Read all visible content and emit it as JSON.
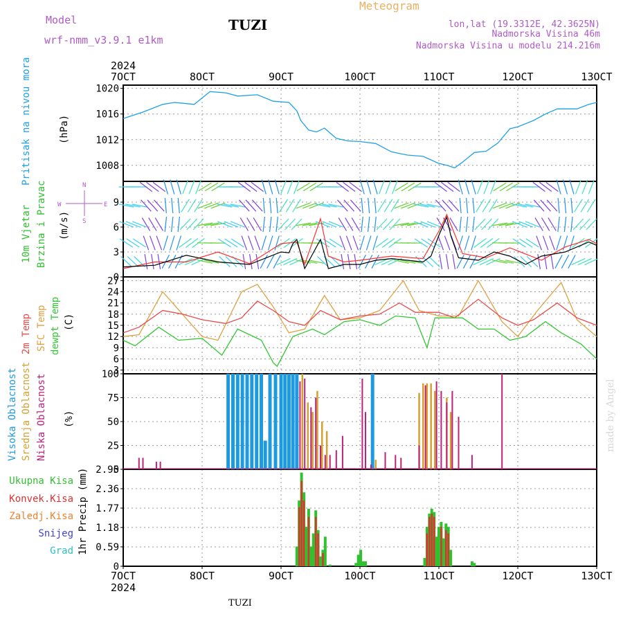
{
  "header": {
    "model_label": "Model",
    "model_name": "wrf-nmm_v3.9.1 e1km",
    "station": "TUZI",
    "chart_kind": "Meteogram",
    "lonlat": "lon,lat (19.3312E, 42.3625N)",
    "elevation": "Nadmorska Visina 46m",
    "model_elevation": "Nadmorska Visina u modelu 214.216m"
  },
  "footer": {
    "station": "TUZI",
    "credit": "made by Angel"
  },
  "colors": {
    "pressure": "#1ea0e6",
    "wind_speed": "#000000",
    "wind_gust": "#ff3030",
    "t2m": "#e84a4a",
    "sfc": "#e0a040",
    "dewpt": "#30c830",
    "cl_high": "#1e9be0",
    "cl_mid": "#d4a030",
    "cl_low": "#c0207a",
    "p_total": "#30c030",
    "p_conv": "#e03030",
    "p_frozen": "#f08030",
    "p_snow": "#4040e0",
    "p_hail": "#30c0c0"
  },
  "chart_data": [
    {
      "type": "line",
      "panel": "pressure",
      "labels": [
        "Pritisak na nivou mora",
        "(hPa)"
      ],
      "x_top_year": "2024",
      "x_ticks": [
        "7OCT",
        "8OCT",
        "9OCT",
        "10OCT",
        "11OCT",
        "12OCT",
        "13OCT"
      ],
      "x_range_days": [
        7,
        13
      ],
      "ylim": [
        1005.5,
        1020.5
      ],
      "yticks": [
        1008,
        1012,
        1016,
        1020
      ],
      "series": [
        {
          "x": [
            7.0,
            7.25,
            7.5,
            7.65,
            7.9,
            8.1,
            8.3,
            8.45,
            8.7,
            8.9,
            9.1,
            9.2,
            9.25,
            9.35,
            9.45,
            9.55,
            9.7,
            9.85,
            10.0,
            10.2,
            10.4,
            10.6,
            10.8,
            11.0,
            11.1,
            11.2,
            11.3,
            11.45,
            11.6,
            11.75,
            11.9,
            12.0,
            12.2,
            12.35,
            12.5,
            12.6,
            12.75,
            12.9,
            13.0
          ],
          "y": [
            1015.3,
            1016.3,
            1017.5,
            1017.8,
            1017.5,
            1019.5,
            1019.3,
            1018.8,
            1019.0,
            1018.0,
            1017.8,
            1016.5,
            1015.0,
            1013.5,
            1013.2,
            1013.8,
            1012.2,
            1011.8,
            1011.7,
            1011.4,
            1010.1,
            1009.6,
            1009.4,
            1008.3,
            1008.0,
            1007.6,
            1008.5,
            1010.0,
            1010.2,
            1011.5,
            1013.7,
            1014.0,
            1015.0,
            1016.0,
            1016.8,
            1016.8,
            1016.8,
            1017.5,
            1017.8
          ]
        }
      ]
    },
    {
      "type": "line",
      "panel": "wind",
      "labels": [
        "10m Vjetar",
        "Brzina i Pravac",
        "(m/s)"
      ],
      "ylim": [
        0,
        11.5
      ],
      "yticks": [
        0,
        3,
        6,
        9
      ],
      "compass": {
        "north": "N",
        "south": "S",
        "east": "E",
        "west": "W"
      },
      "series": [
        {
          "name": "speed",
          "x": [
            7.0,
            7.4,
            7.8,
            8.2,
            8.6,
            9.0,
            9.1,
            9.15,
            9.2,
            9.3,
            9.5,
            9.6,
            9.8,
            10.0,
            10.2,
            10.4,
            10.6,
            10.8,
            10.9,
            11.0,
            11.1,
            11.15,
            11.25,
            11.5,
            11.7,
            11.9,
            12.1,
            12.3,
            12.6,
            12.9,
            13.0
          ],
          "y": [
            1.2,
            1.4,
            2.6,
            1.8,
            1.5,
            3.0,
            2.9,
            4.0,
            4.5,
            1.0,
            4.5,
            1.0,
            1.5,
            1.5,
            2.0,
            2.2,
            2.0,
            1.8,
            2.5,
            5.0,
            7.2,
            5.0,
            2.3,
            2.0,
            3.0,
            2.5,
            1.5,
            2.5,
            3.0,
            4.2,
            3.8
          ]
        },
        {
          "name": "gust",
          "x": [
            7.0,
            7.4,
            7.8,
            8.2,
            8.6,
            9.0,
            9.2,
            9.3,
            9.5,
            9.6,
            9.8,
            10.0,
            10.4,
            10.8,
            11.0,
            11.1,
            11.3,
            11.6,
            11.9,
            12.3,
            12.6,
            12.9,
            13.0
          ],
          "y": [
            1.0,
            1.8,
            1.8,
            3.0,
            1.6,
            4.0,
            4.2,
            1.5,
            7.0,
            2.5,
            1.8,
            2.0,
            2.5,
            2.2,
            5.5,
            7.5,
            2.8,
            2.3,
            3.5,
            2.0,
            3.6,
            4.5,
            4.0
          ]
        }
      ]
    },
    {
      "type": "line",
      "panel": "temperature",
      "labels": [
        "2m Temp",
        "SFC Temp",
        "dewpt Temp",
        "(C)"
      ],
      "ylim": [
        2,
        28
      ],
      "yticks": [
        3,
        6,
        9,
        12,
        15,
        18,
        21,
        24,
        27
      ],
      "series": [
        {
          "name": "2m Temp",
          "x": [
            7.0,
            7.2,
            7.5,
            7.75,
            8.0,
            8.3,
            8.5,
            8.7,
            8.9,
            9.1,
            9.3,
            9.5,
            9.75,
            10.0,
            10.25,
            10.5,
            10.7,
            11.0,
            11.2,
            11.5,
            11.8,
            12.0,
            12.2,
            12.5,
            12.75,
            13.0
          ],
          "y": [
            13,
            14.5,
            19,
            18,
            16.5,
            15.5,
            17,
            21.5,
            19,
            16,
            15,
            19,
            16.5,
            17.5,
            18,
            21,
            18.5,
            18.5,
            17,
            22,
            17,
            15,
            16.5,
            21,
            17,
            15
          ]
        },
        {
          "name": "SFC Temp",
          "x": [
            7.0,
            7.2,
            7.5,
            7.75,
            8.0,
            8.2,
            8.5,
            8.7,
            8.9,
            9.1,
            9.3,
            9.55,
            9.75,
            10.0,
            10.25,
            10.55,
            10.75,
            11.0,
            11.25,
            11.5,
            11.8,
            12.0,
            12.25,
            12.55,
            12.75,
            13.0
          ],
          "y": [
            12,
            12.5,
            24,
            18,
            12,
            11,
            24,
            26,
            20,
            13,
            14,
            23,
            16.5,
            17,
            19,
            27,
            19,
            17.5,
            17.5,
            27,
            16,
            12,
            19,
            26.5,
            16.5,
            12
          ]
        },
        {
          "name": "dewpt Temp",
          "x": [
            7.0,
            7.15,
            7.45,
            7.7,
            8.0,
            8.25,
            8.45,
            8.75,
            8.9,
            8.95,
            9.15,
            9.4,
            9.55,
            9.8,
            10.0,
            10.25,
            10.45,
            10.7,
            10.85,
            10.95,
            11.3,
            11.5,
            11.7,
            11.9,
            12.1,
            12.35,
            12.55,
            12.8,
            13.0
          ],
          "y": [
            11,
            9.5,
            14.5,
            11,
            11.5,
            7,
            14,
            11,
            5,
            4,
            12,
            14,
            12.5,
            16,
            16.5,
            15,
            17.5,
            17,
            9,
            17,
            17,
            14,
            14,
            11,
            12,
            16,
            13,
            10,
            6
          ]
        }
      ]
    },
    {
      "type": "bar",
      "panel": "cloud",
      "labels": [
        "Visoka Oblacnost",
        "Srednja Oblacnost",
        "Niska Oblacnost",
        "(%)"
      ],
      "ylim": [
        0,
        100
      ],
      "yticks": [
        0,
        25,
        50,
        75,
        100
      ],
      "series": [
        {
          "name": "high",
          "x": [
            8.33,
            8.39,
            8.45,
            8.51,
            8.57,
            8.63,
            8.69,
            8.75,
            8.8,
            8.86,
            8.93,
            9.0,
            9.05,
            9.1,
            9.15,
            9.2,
            10.16
          ],
          "y": [
            100,
            100,
            100,
            100,
            100,
            100,
            100,
            100,
            30,
            100,
            100,
            100,
            100,
            100,
            100,
            100,
            100
          ]
        },
        {
          "name": "mid",
          "x": [
            9.27,
            9.34,
            9.4,
            9.46,
            9.52,
            9.58,
            10.2,
            10.75,
            10.8,
            10.85,
            10.9,
            10.95,
            11.1,
            11.15
          ],
          "y": [
            100,
            70,
            60,
            82,
            50,
            40,
            10,
            80,
            90,
            90,
            90,
            82,
            75,
            60
          ]
        },
        {
          "name": "low",
          "x": [
            7.2,
            7.25,
            7.42,
            7.47,
            9.24,
            9.3,
            9.38,
            9.44,
            9.5,
            9.56,
            9.62,
            9.7,
            9.78,
            10.03,
            10.07,
            10.14,
            10.32,
            10.45,
            10.52,
            10.75,
            10.83,
            10.97,
            11.03,
            11.1,
            11.17,
            11.25,
            11.42,
            11.8
          ],
          "y": [
            12,
            12,
            8,
            8,
            92,
            95,
            65,
            75,
            25,
            15,
            15,
            20,
            35,
            95,
            60,
            5,
            18,
            15,
            12,
            25,
            88,
            92,
            82,
            70,
            82,
            55,
            15,
            100
          ]
        }
      ]
    },
    {
      "type": "bar",
      "panel": "precip",
      "labels": [
        "Ukupna Kisa",
        "Konvek.Kisa",
        "Zaledj.Kisa",
        "Snijeg",
        "Grad",
        "1hr Precip (mm)"
      ],
      "ylim": [
        0,
        2.95
      ],
      "yticks": [
        0,
        0.59,
        1.18,
        1.77,
        2.36,
        2.95
      ],
      "x_bottom_year": "2024",
      "series": [
        {
          "name": "total",
          "x": [
            9.2,
            9.23,
            9.26,
            9.29,
            9.32,
            9.35,
            9.38,
            9.41,
            9.44,
            9.47,
            9.5,
            9.53,
            9.56,
            9.62,
            9.95,
            9.98,
            10.01,
            10.04,
            10.07,
            10.82,
            10.85,
            10.88,
            10.91,
            10.94,
            10.97,
            11.0,
            11.03,
            11.06,
            11.09,
            11.12,
            11.15,
            11.42,
            11.45
          ],
          "y": [
            0.6,
            2.0,
            2.85,
            2.25,
            1.2,
            1.75,
            0.6,
            1.0,
            1.7,
            1.1,
            0.3,
            0.5,
            0.9,
            0.05,
            0.1,
            0.35,
            0.5,
            0.15,
            0.15,
            0.25,
            1.2,
            1.6,
            1.75,
            1.65,
            0.9,
            1.2,
            1.35,
            0.85,
            1.3,
            1.2,
            0.5,
            0.15,
            0.1
          ]
        },
        {
          "name": "conv",
          "x": [
            9.23,
            9.26,
            9.29,
            9.35,
            9.44,
            9.47,
            9.53,
            10.85,
            10.88,
            10.91,
            10.94,
            11.03,
            11.09,
            11.12
          ],
          "y": [
            1.8,
            2.6,
            2.0,
            1.5,
            1.5,
            1.0,
            0.4,
            1.0,
            1.5,
            1.6,
            1.5,
            1.2,
            1.1,
            1.0
          ]
        }
      ]
    }
  ]
}
